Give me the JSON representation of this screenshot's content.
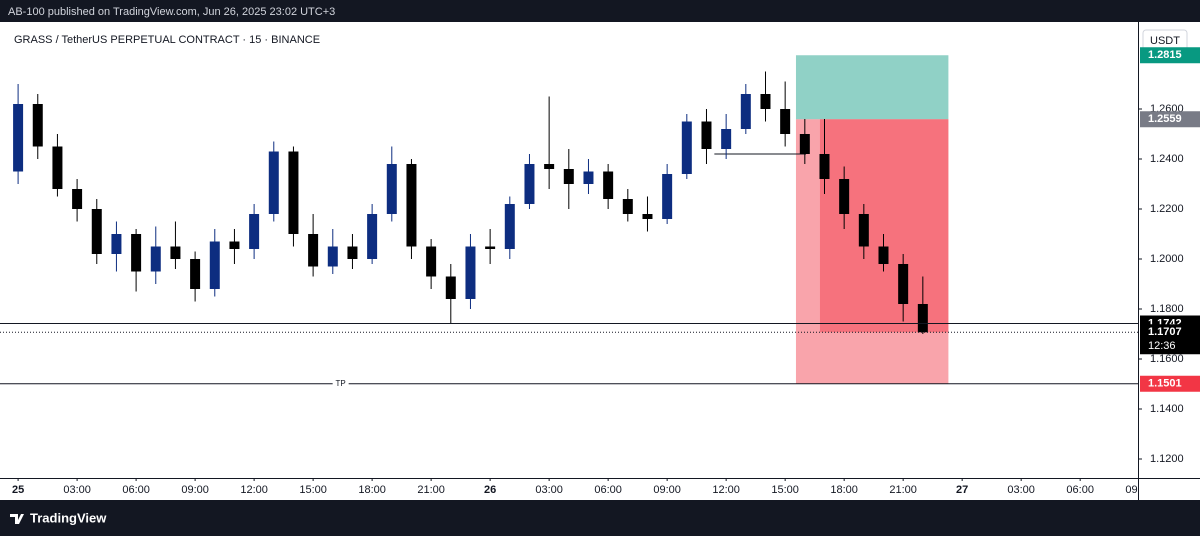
{
  "header": "AB-100 published on TradingView.com, Jun 26, 2025 23:02 UTC+3",
  "footer": "TradingView",
  "chart_data": {
    "type": "candlestick",
    "title": "GRASS / TetherUS PERPETUAL CONTRACT · 15 · BINANCE",
    "currency": "USDT",
    "x": [
      0,
      1,
      2,
      3,
      4,
      5,
      6,
      7,
      8,
      9,
      10,
      11,
      12,
      13,
      14,
      15,
      16,
      17,
      18,
      19,
      20,
      21,
      22,
      23,
      24,
      25,
      26,
      27,
      28,
      29,
      30,
      31,
      32,
      33,
      34,
      35,
      36,
      37,
      38,
      39,
      40,
      41,
      42,
      43,
      44,
      45,
      46
    ],
    "open": [
      1.235,
      1.262,
      1.245,
      1.228,
      1.22,
      1.202,
      1.21,
      1.195,
      1.205,
      1.2,
      1.188,
      1.207,
      1.204,
      1.218,
      1.243,
      1.21,
      1.197,
      1.205,
      1.2,
      1.218,
      1.238,
      1.205,
      1.193,
      1.184,
      1.205,
      1.204,
      1.222,
      1.238,
      1.236,
      1.23,
      1.235,
      1.224,
      1.218,
      1.216,
      1.234,
      1.255,
      1.244,
      1.252,
      1.266,
      1.26,
      1.25,
      1.242,
      1.232,
      1.218,
      1.205,
      1.198,
      1.182
    ],
    "high": [
      1.27,
      1.266,
      1.25,
      1.232,
      1.224,
      1.215,
      1.212,
      1.213,
      1.215,
      1.203,
      1.212,
      1.212,
      1.222,
      1.247,
      1.245,
      1.218,
      1.212,
      1.21,
      1.222,
      1.245,
      1.24,
      1.208,
      1.198,
      1.21,
      1.212,
      1.225,
      1.242,
      1.265,
      1.244,
      1.24,
      1.238,
      1.228,
      1.225,
      1.238,
      1.258,
      1.26,
      1.258,
      1.27,
      1.275,
      1.271,
      1.256,
      1.256,
      1.237,
      1.222,
      1.21,
      1.202,
      1.193
    ],
    "low": [
      1.23,
      1.24,
      1.225,
      1.215,
      1.198,
      1.195,
      1.187,
      1.19,
      1.196,
      1.183,
      1.185,
      1.198,
      1.2,
      1.215,
      1.205,
      1.193,
      1.194,
      1.196,
      1.198,
      1.215,
      1.2,
      1.188,
      1.174,
      1.18,
      1.198,
      1.2,
      1.22,
      1.228,
      1.22,
      1.226,
      1.22,
      1.215,
      1.211,
      1.214,
      1.232,
      1.238,
      1.24,
      1.25,
      1.255,
      1.245,
      1.238,
      1.226,
      1.212,
      1.2,
      1.195,
      1.175,
      1.17
    ],
    "close": [
      1.262,
      1.245,
      1.228,
      1.22,
      1.202,
      1.21,
      1.195,
      1.205,
      1.2,
      1.188,
      1.207,
      1.204,
      1.218,
      1.243,
      1.21,
      1.197,
      1.205,
      1.2,
      1.218,
      1.238,
      1.205,
      1.193,
      1.184,
      1.205,
      1.204,
      1.222,
      1.238,
      1.236,
      1.23,
      1.235,
      1.224,
      1.218,
      1.216,
      1.234,
      1.255,
      1.244,
      1.252,
      1.266,
      1.26,
      1.25,
      1.242,
      1.232,
      1.218,
      1.205,
      1.198,
      1.182,
      1.1707
    ],
    "up_color": "#0d2d80",
    "down_color": "#000000",
    "xlim": [
      -0.92,
      56.94
    ],
    "ylim": [
      1.1124,
      1.2948
    ],
    "xticks": [
      {
        "value": 0,
        "label": "25"
      },
      {
        "value": 3,
        "label": "03:00"
      },
      {
        "value": 6,
        "label": "06:00"
      },
      {
        "value": 9,
        "label": "09:00"
      },
      {
        "value": 12,
        "label": "12:00"
      },
      {
        "value": 15,
        "label": "15:00"
      },
      {
        "value": 18,
        "label": "18:00"
      },
      {
        "value": 21,
        "label": "21:00"
      },
      {
        "value": 24,
        "label": "26"
      },
      {
        "value": 27,
        "label": "03:00"
      },
      {
        "value": 30,
        "label": "06:00"
      },
      {
        "value": 33,
        "label": "09:00"
      },
      {
        "value": 36,
        "label": "12:00"
      },
      {
        "value": 39,
        "label": "15:00"
      },
      {
        "value": 42,
        "label": "18:00"
      },
      {
        "value": 45,
        "label": "21:00"
      },
      {
        "value": 48,
        "label": "27"
      },
      {
        "value": 51,
        "label": "03:00"
      },
      {
        "value": 54,
        "label": "06:00"
      },
      {
        "value": 57,
        "label": "09:00"
      }
    ],
    "yticks": [
      {
        "value": 1.12,
        "label": "1.1200"
      },
      {
        "value": 1.14,
        "label": "1.1400"
      },
      {
        "value": 1.16,
        "label": "1.1600"
      },
      {
        "value": 1.18,
        "label": "1.1800"
      },
      {
        "value": 1.2,
        "label": "1.2000"
      },
      {
        "value": 1.22,
        "label": "1.2200"
      },
      {
        "value": 1.24,
        "label": "1.2400"
      },
      {
        "value": 1.26,
        "label": "1.2600"
      }
    ],
    "position": {
      "start": 39.55,
      "active_start": 40.77,
      "end": 47.3,
      "stop": 1.2815,
      "entry": 1.2559,
      "target": 1.1501
    },
    "segment": {
      "value": 1.242,
      "x": [
        35.4,
        40.06
      ]
    },
    "price_lines": [
      {
        "value": 1.1742,
        "style": "solid"
      },
      {
        "value": 1.1707,
        "style": "dotted",
        "countdown": "12:36"
      }
    ],
    "tp_line": {
      "value": 1.1501,
      "label": "TP",
      "at": 16.4
    }
  }
}
